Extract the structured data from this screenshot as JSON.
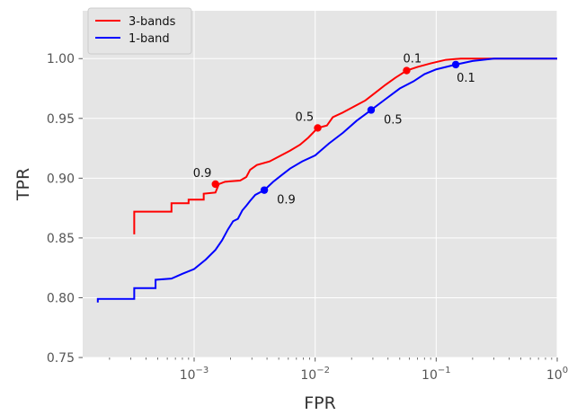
{
  "chart_data": {
    "type": "line",
    "xlabel": "FPR",
    "ylabel": "TPR",
    "xscale": "log",
    "xlim": [
      0.00012,
      1.0
    ],
    "ylim": [
      0.75,
      1.04
    ],
    "grid": true,
    "legend_position": "top-left",
    "x_ticks": [
      {
        "value": 0.001,
        "base": "10",
        "exp": "−3"
      },
      {
        "value": 0.01,
        "base": "10",
        "exp": "−2"
      },
      {
        "value": 0.1,
        "base": "10",
        "exp": "−1"
      },
      {
        "value": 1,
        "base": "10",
        "exp": "0"
      }
    ],
    "y_ticks": [
      "0.75",
      "0.80",
      "0.85",
      "0.90",
      "0.95",
      "1.00"
    ],
    "series": [
      {
        "name": "3-bands",
        "color": "#ff0000",
        "points": [
          [
            0.00032,
            0.853
          ],
          [
            0.00032,
            0.872
          ],
          [
            0.00065,
            0.872
          ],
          [
            0.00065,
            0.879
          ],
          [
            0.0009,
            0.879
          ],
          [
            0.0009,
            0.882
          ],
          [
            0.0012,
            0.882
          ],
          [
            0.0012,
            0.887
          ],
          [
            0.0015,
            0.888
          ],
          [
            0.0016,
            0.895
          ],
          [
            0.0018,
            0.897
          ],
          [
            0.0024,
            0.898
          ],
          [
            0.0027,
            0.901
          ],
          [
            0.0029,
            0.907
          ],
          [
            0.0033,
            0.911
          ],
          [
            0.0042,
            0.914
          ],
          [
            0.005,
            0.918
          ],
          [
            0.0062,
            0.923
          ],
          [
            0.0075,
            0.928
          ],
          [
            0.0088,
            0.934
          ],
          [
            0.0105,
            0.942
          ],
          [
            0.0125,
            0.944
          ],
          [
            0.014,
            0.951
          ],
          [
            0.017,
            0.955
          ],
          [
            0.021,
            0.96
          ],
          [
            0.026,
            0.965
          ],
          [
            0.031,
            0.971
          ],
          [
            0.038,
            0.978
          ],
          [
            0.046,
            0.984
          ],
          [
            0.057,
            0.99
          ],
          [
            0.07,
            0.993
          ],
          [
            0.09,
            0.996
          ],
          [
            0.12,
            0.999
          ],
          [
            0.16,
            1.0
          ],
          [
            0.25,
            1.0
          ],
          [
            1.0,
            1.0
          ]
        ],
        "markers": [
          {
            "x": 0.0015,
            "y": 0.895,
            "label": "0.9"
          },
          {
            "x": 0.0105,
            "y": 0.942,
            "label": "0.5"
          },
          {
            "x": 0.057,
            "y": 0.99,
            "label": "0.1"
          }
        ]
      },
      {
        "name": "1-band",
        "color": "#0000ff",
        "points": [
          [
            0.00016,
            0.796
          ],
          [
            0.00016,
            0.799
          ],
          [
            0.00032,
            0.799
          ],
          [
            0.00032,
            0.808
          ],
          [
            0.00048,
            0.808
          ],
          [
            0.00048,
            0.815
          ],
          [
            0.00065,
            0.816
          ],
          [
            0.0008,
            0.82
          ],
          [
            0.001,
            0.824
          ],
          [
            0.00125,
            0.832
          ],
          [
            0.0015,
            0.84
          ],
          [
            0.0017,
            0.848
          ],
          [
            0.0019,
            0.857
          ],
          [
            0.0021,
            0.864
          ],
          [
            0.0023,
            0.866
          ],
          [
            0.0025,
            0.873
          ],
          [
            0.0027,
            0.877
          ],
          [
            0.0029,
            0.881
          ],
          [
            0.0032,
            0.886
          ],
          [
            0.0038,
            0.89
          ],
          [
            0.0045,
            0.897
          ],
          [
            0.0052,
            0.902
          ],
          [
            0.0062,
            0.908
          ],
          [
            0.0078,
            0.914
          ],
          [
            0.01,
            0.919
          ],
          [
            0.013,
            0.929
          ],
          [
            0.017,
            0.938
          ],
          [
            0.022,
            0.948
          ],
          [
            0.029,
            0.957
          ],
          [
            0.038,
            0.966
          ],
          [
            0.05,
            0.975
          ],
          [
            0.065,
            0.981
          ],
          [
            0.08,
            0.987
          ],
          [
            0.1,
            0.991
          ],
          [
            0.145,
            0.995
          ],
          [
            0.2,
            0.998
          ],
          [
            0.3,
            1.0
          ],
          [
            1.0,
            1.0
          ]
        ],
        "markers": [
          {
            "x": 0.0038,
            "y": 0.89,
            "label": "0.9"
          },
          {
            "x": 0.029,
            "y": 0.957,
            "label": "0.5"
          },
          {
            "x": 0.145,
            "y": 0.995,
            "label": "0.1"
          }
        ]
      }
    ]
  }
}
